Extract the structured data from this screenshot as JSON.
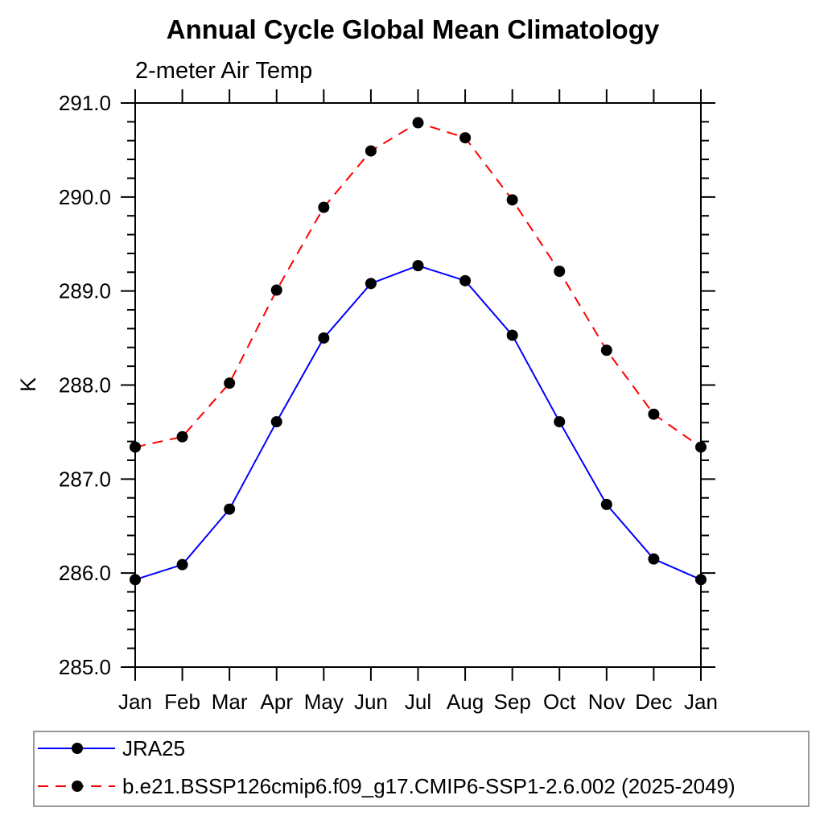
{
  "colors": {
    "axis": "#000000",
    "marker": "#000000",
    "series_jra25": "#0000ff",
    "series_model": "#ff0000",
    "legend_border": "#999999"
  },
  "chart_data": {
    "type": "line",
    "title": "Annual Cycle Global Mean Climatology",
    "subtitle": "2-meter Air Temp",
    "xlabel": "",
    "ylabel": "K",
    "ylim": [
      285.0,
      291.0
    ],
    "ytick_step": 1.0,
    "yminor_step": 0.2,
    "y_tick_labels": [
      "285.0",
      "286.0",
      "287.0",
      "288.0",
      "289.0",
      "290.0",
      "291.0"
    ],
    "grid": false,
    "categories": [
      "Jan",
      "Feb",
      "Mar",
      "Apr",
      "May",
      "Jun",
      "Jul",
      "Aug",
      "Sep",
      "Oct",
      "Nov",
      "Dec",
      "Jan"
    ],
    "series": [
      {
        "name": "JRA25",
        "color": "#0000ff",
        "line_style": "solid",
        "marker": "circle",
        "marker_color": "#000000",
        "values": [
          285.93,
          286.09,
          286.68,
          287.61,
          288.5,
          289.08,
          289.27,
          289.11,
          288.53,
          287.61,
          286.73,
          286.15,
          285.93
        ]
      },
      {
        "name": "b.e21.BSSP126cmip6.f09_g17.CMIP6-SSP1-2.6.002 (2025-2049)",
        "color": "#ff0000",
        "line_style": "dashed",
        "marker": "circle",
        "marker_color": "#000000",
        "values": [
          287.34,
          287.45,
          288.02,
          289.01,
          289.89,
          290.49,
          290.79,
          290.63,
          289.97,
          289.21,
          288.37,
          287.69,
          287.34
        ]
      }
    ],
    "legend_position": "bottom"
  }
}
